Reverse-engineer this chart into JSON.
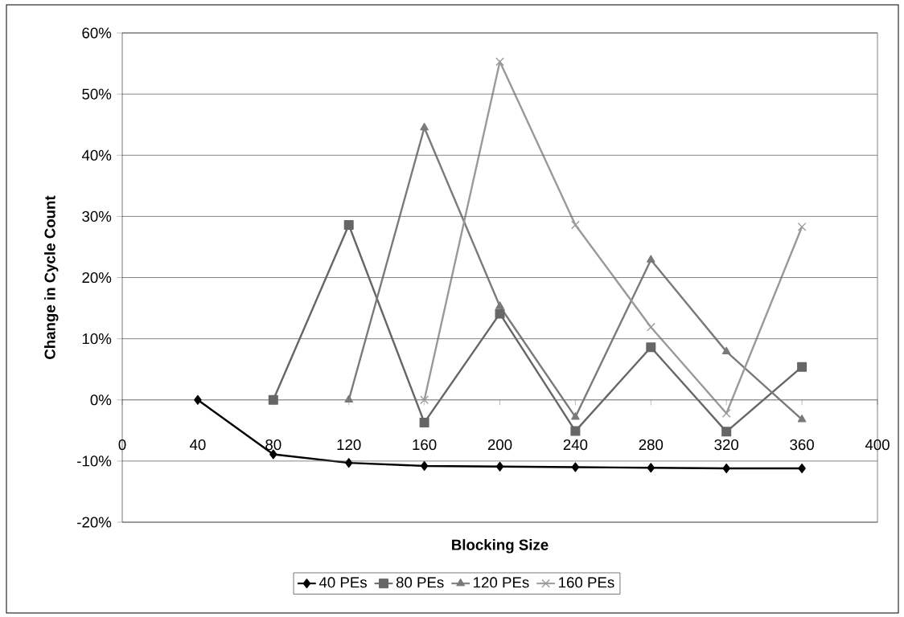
{
  "chart_data": {
    "type": "line",
    "xlabel": "Blocking Size",
    "ylabel": "Change in Cycle Count",
    "xlim": [
      0,
      400
    ],
    "xticks": [
      0,
      40,
      80,
      120,
      160,
      200,
      240,
      280,
      320,
      360,
      400
    ],
    "ylim": [
      -20,
      60
    ],
    "yticks": [
      {
        "value": -20,
        "label": "-20%"
      },
      {
        "value": -10,
        "label": "-10%"
      },
      {
        "value": 0,
        "label": "0%"
      },
      {
        "value": 10,
        "label": "10%"
      },
      {
        "value": 20,
        "label": "20%"
      },
      {
        "value": 30,
        "label": "30%"
      },
      {
        "value": 40,
        "label": "40%"
      },
      {
        "value": 50,
        "label": "50%"
      },
      {
        "value": 60,
        "label": "60%"
      }
    ],
    "grid": "y",
    "legend": "bottom",
    "line_style": "solid",
    "series": [
      {
        "name": "40 PEs",
        "color": "#000000",
        "marker": "diamond",
        "x": [
          40,
          80,
          120,
          160,
          200,
          240,
          280,
          320,
          360
        ],
        "values": [
          0,
          -8.9,
          -10.3,
          -10.8,
          -10.9,
          -11.0,
          -11.1,
          -11.2,
          -11.2
        ]
      },
      {
        "name": "80 PEs",
        "color": "#666666",
        "marker": "square",
        "x": [
          80,
          120,
          160,
          200,
          240,
          280,
          320,
          360
        ],
        "values": [
          0,
          28.6,
          -3.7,
          14.1,
          -5.1,
          8.6,
          -5.2,
          5.4
        ]
      },
      {
        "name": "120 PEs",
        "color": "#7a7a7a",
        "marker": "triangle",
        "x": [
          120,
          160,
          200,
          240,
          280,
          320,
          360
        ],
        "values": [
          0,
          44.5,
          15.3,
          -2.8,
          22.9,
          7.9,
          -3.2
        ]
      },
      {
        "name": "160 PEs",
        "color": "#999999",
        "marker": "cross",
        "x": [
          160,
          200,
          240,
          280,
          320,
          360
        ],
        "values": [
          0,
          55.3,
          28.6,
          11.9,
          -2.2,
          28.3
        ]
      }
    ]
  }
}
